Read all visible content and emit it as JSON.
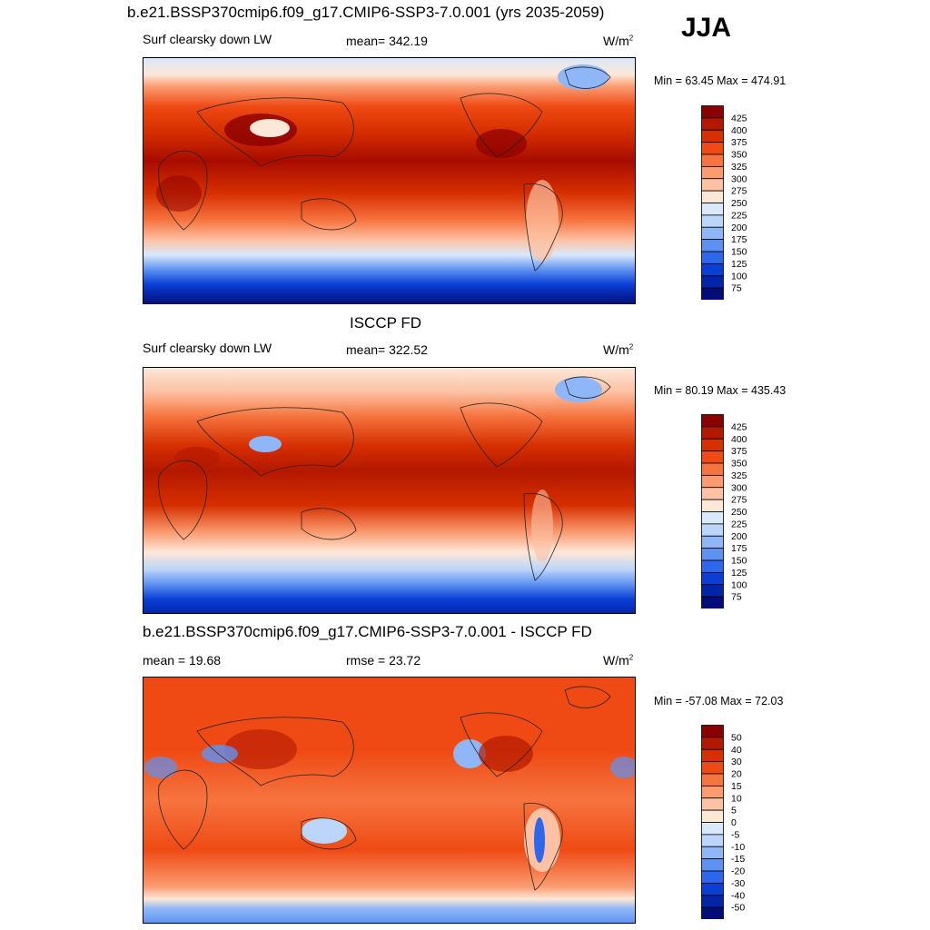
{
  "header": {
    "title": "b.e21.BSSP370cmip6.f09_g17.CMIP6-SSP3-7.0.001 (yrs 2035-2059)",
    "season": "JJA"
  },
  "panels": [
    {
      "id": "model",
      "title": "",
      "variable": "Surf clearsky down LW",
      "stat": "mean= 342.19",
      "units": "W/m",
      "units_sup": "2",
      "minmax": "Min =  63.45 Max = 474.91",
      "colorbar": {
        "levels": [
          "425",
          "400",
          "375",
          "350",
          "325",
          "300",
          "275",
          "250",
          "225",
          "200",
          "175",
          "150",
          "125",
          "100",
          "75"
        ],
        "colors": [
          "#8b0000",
          "#b31800",
          "#d62f00",
          "#ef4a14",
          "#f6743f",
          "#fa9b70",
          "#fcc2a3",
          "#fde8d8",
          "#d9e8fb",
          "#bcd5fa",
          "#8fb7f7",
          "#5e92f2",
          "#2f67ec",
          "#0a3fd6",
          "#0224a8",
          "#020d78"
        ]
      }
    },
    {
      "id": "obs",
      "title": "ISCCP FD",
      "variable": "Surf clearsky down LW",
      "stat": "mean= 322.52",
      "units": "W/m",
      "units_sup": "2",
      "minmax": "Min =  80.19 Max = 435.43",
      "colorbar": {
        "levels": [
          "425",
          "400",
          "375",
          "350",
          "325",
          "300",
          "275",
          "250",
          "225",
          "200",
          "175",
          "150",
          "125",
          "100",
          "75"
        ],
        "colors": [
          "#8b0000",
          "#b31800",
          "#d62f00",
          "#ef4a14",
          "#f6743f",
          "#fa9b70",
          "#fcc2a3",
          "#fde8d8",
          "#d9e8fb",
          "#bcd5fa",
          "#8fb7f7",
          "#5e92f2",
          "#2f67ec",
          "#0a3fd6",
          "#0224a8",
          "#020d78"
        ]
      }
    },
    {
      "id": "diff",
      "title": "b.e21.BSSP370cmip6.f09_g17.CMIP6-SSP3-7.0.001 - ISCCP FD",
      "variable": "mean =  19.68",
      "stat": "rmse =  23.72",
      "units": "W/m",
      "units_sup": "2",
      "minmax": "Min = -57.08 Max =  72.03",
      "colorbar": {
        "levels": [
          "50",
          "40",
          "30",
          "20",
          "15",
          "10",
          "5",
          "0",
          "-5",
          "-10",
          "-15",
          "-20",
          "-30",
          "-40",
          "-50"
        ],
        "colors": [
          "#8b0000",
          "#b31800",
          "#d62f00",
          "#ef4a14",
          "#f6743f",
          "#fa9b70",
          "#fcc2a3",
          "#fde8d8",
          "#d9e8fb",
          "#bcd5fa",
          "#8fb7f7",
          "#5e92f2",
          "#2f67ec",
          "#0a3fd6",
          "#0224a8",
          "#020d78"
        ]
      }
    }
  ]
}
